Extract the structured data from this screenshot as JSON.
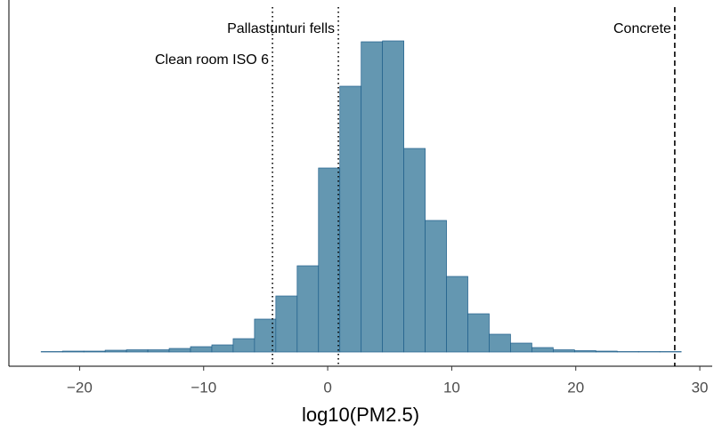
{
  "chart_data": {
    "type": "histogram",
    "xlabel": "log10(PM2.5)",
    "bins": [
      -23.1,
      -21.38,
      -19.66,
      -17.94,
      -16.22,
      -14.5,
      -12.78,
      -11.06,
      -9.34,
      -7.62,
      -5.9,
      -4.18,
      -2.46,
      -0.74,
      0.98,
      2.7,
      4.42,
      6.14,
      7.86,
      9.58,
      11.3,
      13.02,
      14.74,
      16.46,
      18.18,
      19.9,
      21.62,
      23.34,
      25.06,
      26.78,
      28.5
    ],
    "values": [
      0.5,
      1,
      1,
      2,
      2.5,
      2.5,
      4,
      6,
      8,
      15,
      37,
      63,
      97,
      207,
      299,
      349,
      350,
      229,
      148,
      85,
      43,
      20,
      10,
      5,
      2.5,
      1.5,
      1,
      0.5,
      0.5,
      0.5
    ],
    "color": "#6497b1",
    "edgecolor": "#1f5f8b",
    "xlim": [
      -25.7,
      31
    ],
    "ylim": [
      -16,
      396
    ],
    "xticks": [
      {
        "value": -20,
        "label": "−20"
      },
      {
        "value": -10,
        "label": "−10"
      },
      0,
      10,
      20,
      30
    ],
    "vlines": [
      {
        "value": -4.45,
        "label": "Clean room ISO 6",
        "style": "dotted"
      },
      {
        "value": 0.86,
        "label": "Pallastunturi fells",
        "style": "dotted"
      },
      {
        "value": 27.98,
        "label": "Concrete",
        "style": "dashed"
      }
    ]
  }
}
